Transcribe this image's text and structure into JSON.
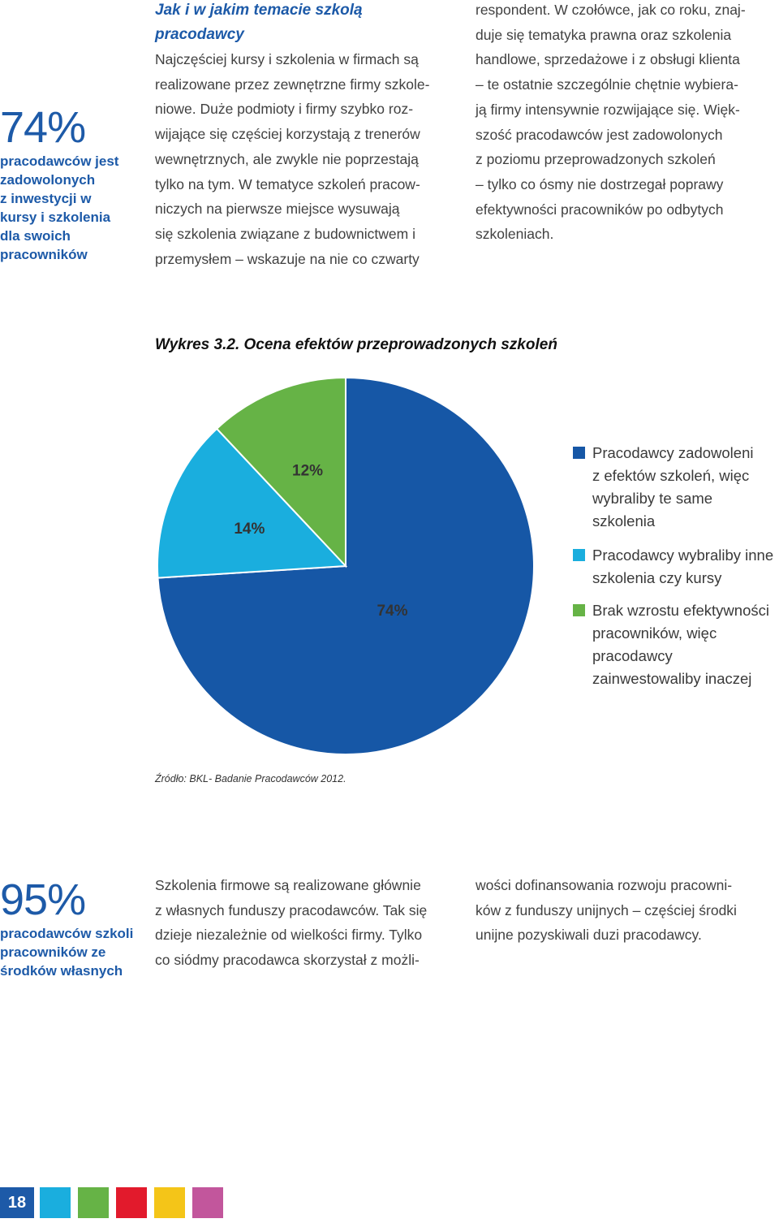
{
  "sidebar_top": {
    "value": "74%",
    "caption_lines": [
      "pracodawców jest",
      "zadowolonych",
      "z inwestycji w",
      "kursy i szkolenia",
      "dla swoich",
      "pracowników"
    ]
  },
  "section": {
    "heading_lines": [
      "Jak i w jakim temacie szkolą",
      "pracodawcy"
    ],
    "col1_lines": [
      "Najczęściej kursy i szkolenia w firmach są",
      "realizowane przez zewnętrzne firmy szkole-",
      "niowe. Duże podmioty i firmy szybko roz-",
      "wijające się częściej korzystają z trenerów",
      "wewnętrznych, ale zwykle nie poprzestają",
      "tylko na tym. W tematyce szkoleń pracow-",
      "niczych na pierwsze miejsce wysuwają",
      "się szkolenia związane z budownictwem i",
      "przemysłem – wskazuje na nie co czwarty"
    ],
    "col2_lines": [
      "respondent. W czołówce, jak co roku, znaj-",
      "duje się tematyka prawna oraz szkolenia",
      "handlowe, sprzedażowe i z obsługi klienta",
      "– te ostatnie szczególnie chętnie wybiera-",
      "ją firmy intensywnie rozwijające się. Więk-",
      "szość pracodawców jest zadowolonych",
      "z poziomu przeprowadzonych szkoleń",
      "– tylko co ósmy nie dostrzegał poprawy",
      "efektywności pracowników po odbytych",
      "szkoleniach."
    ]
  },
  "chart_title": "Wykres 3.2. Ocena efektów przeprowadzonych szkoleń",
  "chart_data": {
    "type": "pie",
    "slices": [
      {
        "label_lines": [
          "Pracodawcy zadowoleni",
          "z efektów szkoleń, więc",
          "wybraliby te same",
          "szkolenia"
        ],
        "value": 74,
        "display": "74%",
        "color": "#1657a6"
      },
      {
        "label_lines": [
          "Pracodawcy wybraliby inne",
          "szkolenia czy kursy"
        ],
        "value": 14,
        "display": "14%",
        "color": "#1aaede"
      },
      {
        "label_lines": [
          "Brak wzrostu efektywności",
          "pracowników, więc",
          "pracodawcy",
          "zainwestowaliby inaczej"
        ],
        "value": 12,
        "display": "12%",
        "color": "#66b346"
      }
    ],
    "legend_position": "right"
  },
  "source": "Źródło: BKL- Badanie Pracodawców 2012.",
  "sidebar_bottom": {
    "value": "95%",
    "caption_lines": [
      "pracodawców szkoli",
      "pracowników ze",
      "środków własnych"
    ]
  },
  "bottom": {
    "col1_lines": [
      "Szkolenia firmowe są realizowane głównie",
      "z własnych funduszy pracodawców. Tak się",
      "dzieje niezależnie od wielkości firmy. Tylko",
      "co siódmy pracodawca skorzystał z możli-"
    ],
    "col2_lines": [
      "wości dofinansowania rozwoju pracowni-",
      "ków z funduszy unijnych – częściej środki",
      "unijne pozyskiwali duzi pracodawcy."
    ]
  },
  "footer": {
    "page_number": "18",
    "colors": [
      "#1aaede",
      "#66b346",
      "#e21a2c",
      "#f4c518",
      "#c2569c"
    ]
  }
}
